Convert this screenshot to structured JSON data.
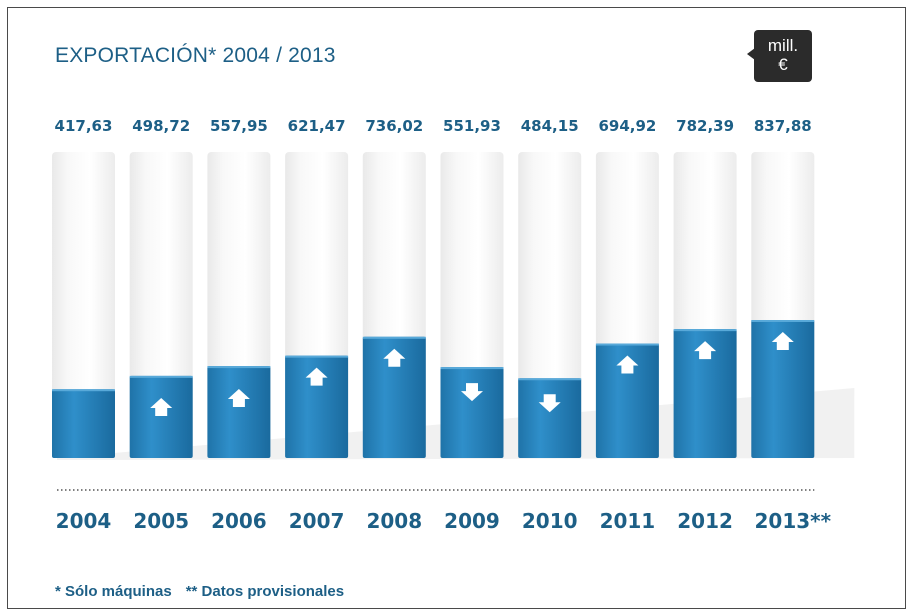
{
  "title": {
    "main": "EXPORTACIÓN* 2004 / 2013"
  },
  "unit_badge": {
    "line1": "mill.",
    "line2": "€"
  },
  "footnotes": {
    "note1": "* Sólo máquinas",
    "note2": "** Datos provisionales"
  },
  "colors": {
    "accent": "#1d5f86",
    "bar_fill": "#2a86c0",
    "track": "#f4f4f4",
    "badge": "#2b2b2b"
  },
  "chart_data": {
    "type": "bar",
    "title": "EXPORTACIÓN* 2004 / 2013",
    "unit": "mill. €",
    "categories": [
      "2004",
      "2005",
      "2006",
      "2007",
      "2008",
      "2009",
      "2010",
      "2011",
      "2012",
      "2013**"
    ],
    "value_labels": [
      "417,63",
      "498,72",
      "557,95",
      "621,47",
      "736,02",
      "551,93",
      "484,15",
      "694,92",
      "782,39",
      "837,88"
    ],
    "values": [
      417.63,
      498.72,
      557.95,
      621.47,
      736.02,
      551.93,
      484.15,
      694.92,
      782.39,
      837.88
    ],
    "trend": [
      "none",
      "up",
      "up",
      "up",
      "up",
      "down",
      "down",
      "up",
      "up",
      "up"
    ],
    "xlabel": "",
    "ylabel": "",
    "grid": false,
    "legend": "none"
  }
}
